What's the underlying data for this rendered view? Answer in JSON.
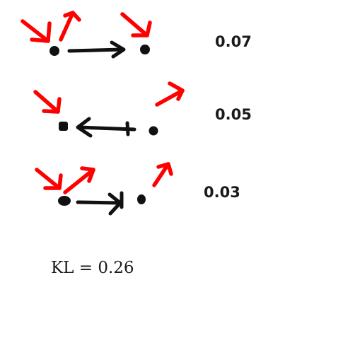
{
  "rows": [
    {
      "value": "0.07"
    },
    {
      "value": "0.05"
    },
    {
      "value": "0.03"
    }
  ],
  "summary": {
    "text": "KL = 0.26"
  },
  "colors": {
    "ink": "#111111",
    "red_arrow": "#ff0000",
    "background": "#ffffff"
  }
}
